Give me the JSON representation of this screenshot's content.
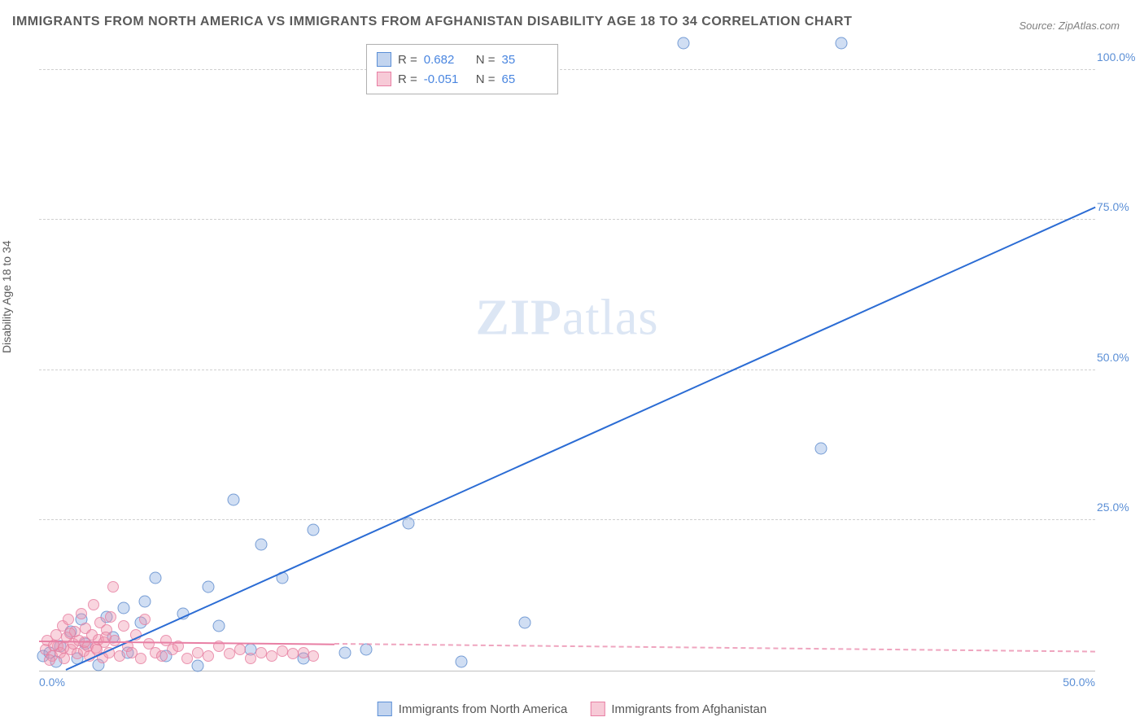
{
  "title": "IMMIGRANTS FROM NORTH AMERICA VS IMMIGRANTS FROM AFGHANISTAN DISABILITY AGE 18 TO 34 CORRELATION CHART",
  "source_label": "Source: ZipAtlas.com",
  "y_axis_label": "Disability Age 18 to 34",
  "watermark_bold": "ZIP",
  "watermark_rest": "atlas",
  "chart": {
    "type": "scatter",
    "xlim": [
      0,
      50
    ],
    "ylim": [
      0,
      105
    ],
    "x_ticks": [
      {
        "v": 0,
        "label": "0.0%"
      },
      {
        "v": 50,
        "label": "50.0%"
      }
    ],
    "y_ticks": [
      {
        "v": 25,
        "label": "25.0%"
      },
      {
        "v": 50,
        "label": "50.0%"
      },
      {
        "v": 75,
        "label": "75.0%"
      },
      {
        "v": 100,
        "label": "100.0%"
      }
    ],
    "grid_dash_color": "#d0d0d0",
    "background_color": "#ffffff",
    "series": [
      {
        "name": "Immigrants from North America",
        "color_fill": "rgba(120,160,220,0.35)",
        "color_stroke": "rgba(80,130,200,0.7)",
        "class": "blue",
        "R": "0.682",
        "N": "35",
        "trend": {
          "x1": 0,
          "y1": -2,
          "x2": 50,
          "y2": 77,
          "color": "#2b6cd4"
        },
        "points": [
          [
            0.2,
            2.5
          ],
          [
            0.5,
            3.0
          ],
          [
            0.8,
            1.5
          ],
          [
            1.0,
            4.0
          ],
          [
            1.5,
            6.5
          ],
          [
            1.8,
            2.0
          ],
          [
            2.0,
            8.5
          ],
          [
            2.2,
            4.5
          ],
          [
            2.8,
            1.0
          ],
          [
            3.2,
            9.0
          ],
          [
            3.5,
            5.5
          ],
          [
            4.0,
            10.5
          ],
          [
            4.2,
            3.0
          ],
          [
            4.8,
            8.0
          ],
          [
            5.0,
            11.5
          ],
          [
            5.5,
            15.5
          ],
          [
            6.0,
            2.5
          ],
          [
            6.8,
            9.5
          ],
          [
            7.5,
            0.8
          ],
          [
            8.0,
            14.0
          ],
          [
            8.5,
            7.5
          ],
          [
            9.2,
            28.5
          ],
          [
            10.0,
            3.5
          ],
          [
            10.5,
            21.0
          ],
          [
            11.5,
            15.5
          ],
          [
            12.5,
            2.0
          ],
          [
            13.0,
            23.5
          ],
          [
            14.5,
            3.0
          ],
          [
            15.5,
            3.5
          ],
          [
            17.5,
            24.5
          ],
          [
            20.0,
            1.5
          ],
          [
            23.0,
            8.0
          ],
          [
            30.5,
            104.5
          ],
          [
            38.0,
            104.5
          ],
          [
            37.0,
            37.0
          ]
        ]
      },
      {
        "name": "Immigrants from Afghanistan",
        "color_fill": "rgba(240,150,175,0.4)",
        "color_stroke": "rgba(230,120,155,0.7)",
        "class": "pink",
        "R": "-0.051",
        "N": "65",
        "trend": {
          "x1": 0,
          "y1": 4.8,
          "x2": 50,
          "y2": 3.0,
          "color": "#e87fa4",
          "solid_until_x": 14
        },
        "points": [
          [
            0.3,
            3.5
          ],
          [
            0.4,
            5.0
          ],
          [
            0.6,
            2.5
          ],
          [
            0.8,
            6.0
          ],
          [
            0.9,
            4.0
          ],
          [
            1.0,
            3.0
          ],
          [
            1.1,
            7.5
          ],
          [
            1.2,
            2.0
          ],
          [
            1.3,
            5.5
          ],
          [
            1.4,
            8.5
          ],
          [
            1.5,
            3.5
          ],
          [
            1.6,
            4.5
          ],
          [
            1.7,
            6.5
          ],
          [
            1.8,
            2.8
          ],
          [
            1.9,
            5.0
          ],
          [
            2.0,
            9.5
          ],
          [
            2.1,
            3.2
          ],
          [
            2.2,
            7.0
          ],
          [
            2.3,
            4.0
          ],
          [
            2.4,
            2.5
          ],
          [
            2.5,
            6.0
          ],
          [
            2.6,
            11.0
          ],
          [
            2.7,
            3.8
          ],
          [
            2.8,
            5.2
          ],
          [
            2.9,
            8.0
          ],
          [
            3.0,
            2.2
          ],
          [
            3.1,
            4.8
          ],
          [
            3.2,
            6.8
          ],
          [
            3.3,
            3.0
          ],
          [
            3.4,
            9.0
          ],
          [
            3.5,
            14.0
          ],
          [
            3.6,
            5.0
          ],
          [
            3.8,
            2.5
          ],
          [
            4.0,
            7.5
          ],
          [
            4.2,
            4.0
          ],
          [
            4.4,
            3.0
          ],
          [
            4.6,
            6.0
          ],
          [
            4.8,
            2.0
          ],
          [
            5.0,
            8.5
          ],
          [
            5.2,
            4.5
          ],
          [
            5.5,
            3.0
          ],
          [
            5.8,
            2.5
          ],
          [
            6.0,
            5.0
          ],
          [
            6.3,
            3.5
          ],
          [
            6.6,
            4.0
          ],
          [
            7.0,
            2.0
          ],
          [
            7.5,
            3.0
          ],
          [
            8.0,
            2.5
          ],
          [
            8.5,
            4.0
          ],
          [
            9.0,
            2.8
          ],
          [
            9.5,
            3.5
          ],
          [
            10.0,
            2.0
          ],
          [
            10.5,
            3.0
          ],
          [
            11.0,
            2.5
          ],
          [
            11.5,
            3.2
          ],
          [
            12.0,
            2.8
          ],
          [
            12.5,
            3.0
          ],
          [
            13.0,
            2.5
          ],
          [
            0.5,
            1.8
          ],
          [
            0.7,
            4.2
          ],
          [
            1.15,
            3.8
          ],
          [
            1.45,
            6.2
          ],
          [
            2.15,
            4.8
          ],
          [
            2.75,
            3.5
          ],
          [
            3.15,
            5.5
          ]
        ]
      }
    ]
  },
  "stats_legend": {
    "R_label": "R =",
    "N_label": "N ="
  },
  "x_legend_series": [
    "Immigrants from North America",
    "Immigrants from Afghanistan"
  ]
}
